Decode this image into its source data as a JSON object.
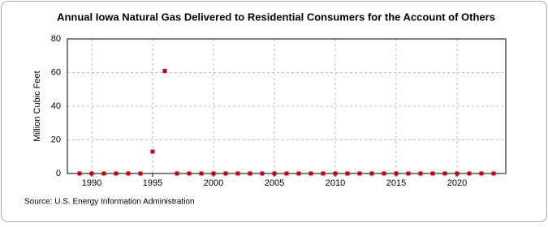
{
  "chart_data": {
    "type": "scatter",
    "title": "Annual Iowa Natural Gas Delivered to Residential Consumers for the Account of Others",
    "y_label": "Million Cubic Feet",
    "source": "Source: U.S. Energy Information Administration",
    "x": [
      1989,
      1990,
      1991,
      1992,
      1993,
      1994,
      1995,
      1996,
      1997,
      1998,
      1999,
      2000,
      2001,
      2002,
      2003,
      2004,
      2005,
      2006,
      2007,
      2008,
      2009,
      2010,
      2011,
      2012,
      2013,
      2014,
      2015,
      2016,
      2017,
      2018,
      2019,
      2020,
      2021,
      2022,
      2023
    ],
    "values": [
      0,
      0,
      0,
      0,
      0,
      0,
      13,
      61,
      0,
      0,
      0,
      0,
      0,
      0,
      0,
      0,
      0,
      0,
      0,
      0,
      0,
      0,
      0,
      0,
      0,
      0,
      0,
      0,
      0,
      0,
      0,
      0,
      0,
      0,
      0
    ],
    "color": "#cc0000",
    "xlim": [
      1988,
      2024
    ],
    "xticks": [
      1990,
      1995,
      2000,
      2005,
      2010,
      2015,
      2020
    ],
    "ylim": [
      0,
      80
    ],
    "yticks": [
      0,
      20,
      40,
      60,
      80
    ],
    "grid": true
  }
}
